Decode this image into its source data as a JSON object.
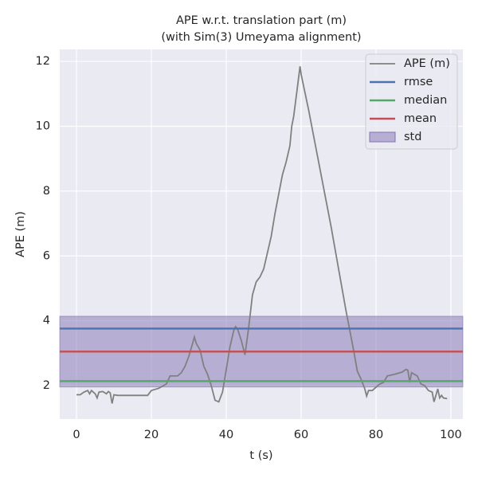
{
  "chart_data": {
    "type": "line",
    "title": [
      "APE w.r.t. translation part (m)",
      "(with Sim(3) Umeyama alignment)"
    ],
    "xlabel": "t (s)",
    "ylabel": "APE (m)",
    "xlim": [
      -4.47,
      103.2
    ],
    "ylim": [
      0.97,
      12.37
    ],
    "xticks": [
      0,
      20,
      40,
      60,
      80,
      100
    ],
    "yticks": [
      2,
      4,
      6,
      8,
      10,
      12
    ],
    "grid": true,
    "legend": "upper right",
    "series": [
      {
        "name": "APE (m)",
        "color": "#808080",
        "x": [
          0,
          1,
          2,
          3,
          3.5,
          4,
          5,
          5.5,
          6,
          7,
          8,
          8.5,
          9,
          9.5,
          10,
          11,
          15,
          19,
          20,
          22,
          24,
          25,
          27,
          28,
          29,
          30,
          31,
          31.5,
          32,
          33,
          34,
          35,
          36,
          37,
          38,
          39,
          40,
          41,
          42,
          42.5,
          43,
          44,
          45,
          46,
          47,
          48,
          49,
          50,
          51,
          52,
          53,
          54,
          55,
          56,
          57,
          57.5,
          58,
          59,
          59.7,
          60,
          62,
          64,
          66,
          68,
          70,
          72,
          74,
          75,
          76,
          77,
          77.5,
          78,
          79,
          80,
          81,
          82,
          83,
          85,
          87,
          88,
          88.5,
          89,
          89.5,
          91,
          92,
          93,
          94,
          95,
          95.5,
          96,
          96.5,
          97,
          97.5,
          98,
          99
        ],
        "values": [
          1.72,
          1.72,
          1.8,
          1.85,
          1.75,
          1.85,
          1.75,
          1.62,
          1.8,
          1.82,
          1.75,
          1.82,
          1.78,
          1.45,
          1.72,
          1.7,
          1.7,
          1.7,
          1.85,
          1.92,
          2.05,
          2.3,
          2.3,
          2.4,
          2.6,
          2.9,
          3.3,
          3.5,
          3.3,
          3.1,
          2.6,
          2.35,
          2.0,
          1.55,
          1.5,
          1.8,
          2.5,
          3.2,
          3.7,
          3.82,
          3.75,
          3.4,
          2.95,
          3.8,
          4.8,
          5.2,
          5.35,
          5.6,
          6.1,
          6.6,
          7.3,
          7.9,
          8.5,
          8.9,
          9.4,
          10.0,
          10.3,
          11.2,
          11.85,
          11.6,
          10.5,
          9.3,
          8.1,
          6.9,
          5.6,
          4.3,
          3.1,
          2.45,
          2.2,
          1.9,
          1.68,
          1.85,
          1.85,
          1.95,
          2.05,
          2.1,
          2.3,
          2.35,
          2.42,
          2.5,
          2.48,
          2.1,
          2.4,
          2.3,
          2.05,
          2.0,
          1.85,
          1.8,
          1.5,
          1.7,
          1.9,
          1.62,
          1.7,
          1.62,
          1.6
        ]
      }
    ],
    "hlines": [
      {
        "name": "rmse",
        "color": "#4c72b0",
        "value": 3.76
      },
      {
        "name": "median",
        "color": "#55a868",
        "value": 2.14
      },
      {
        "name": "mean",
        "color": "#c44e52",
        "value": 3.05
      }
    ],
    "band": {
      "name": "std",
      "color": "#8172b3",
      "value": 1.09
    }
  }
}
